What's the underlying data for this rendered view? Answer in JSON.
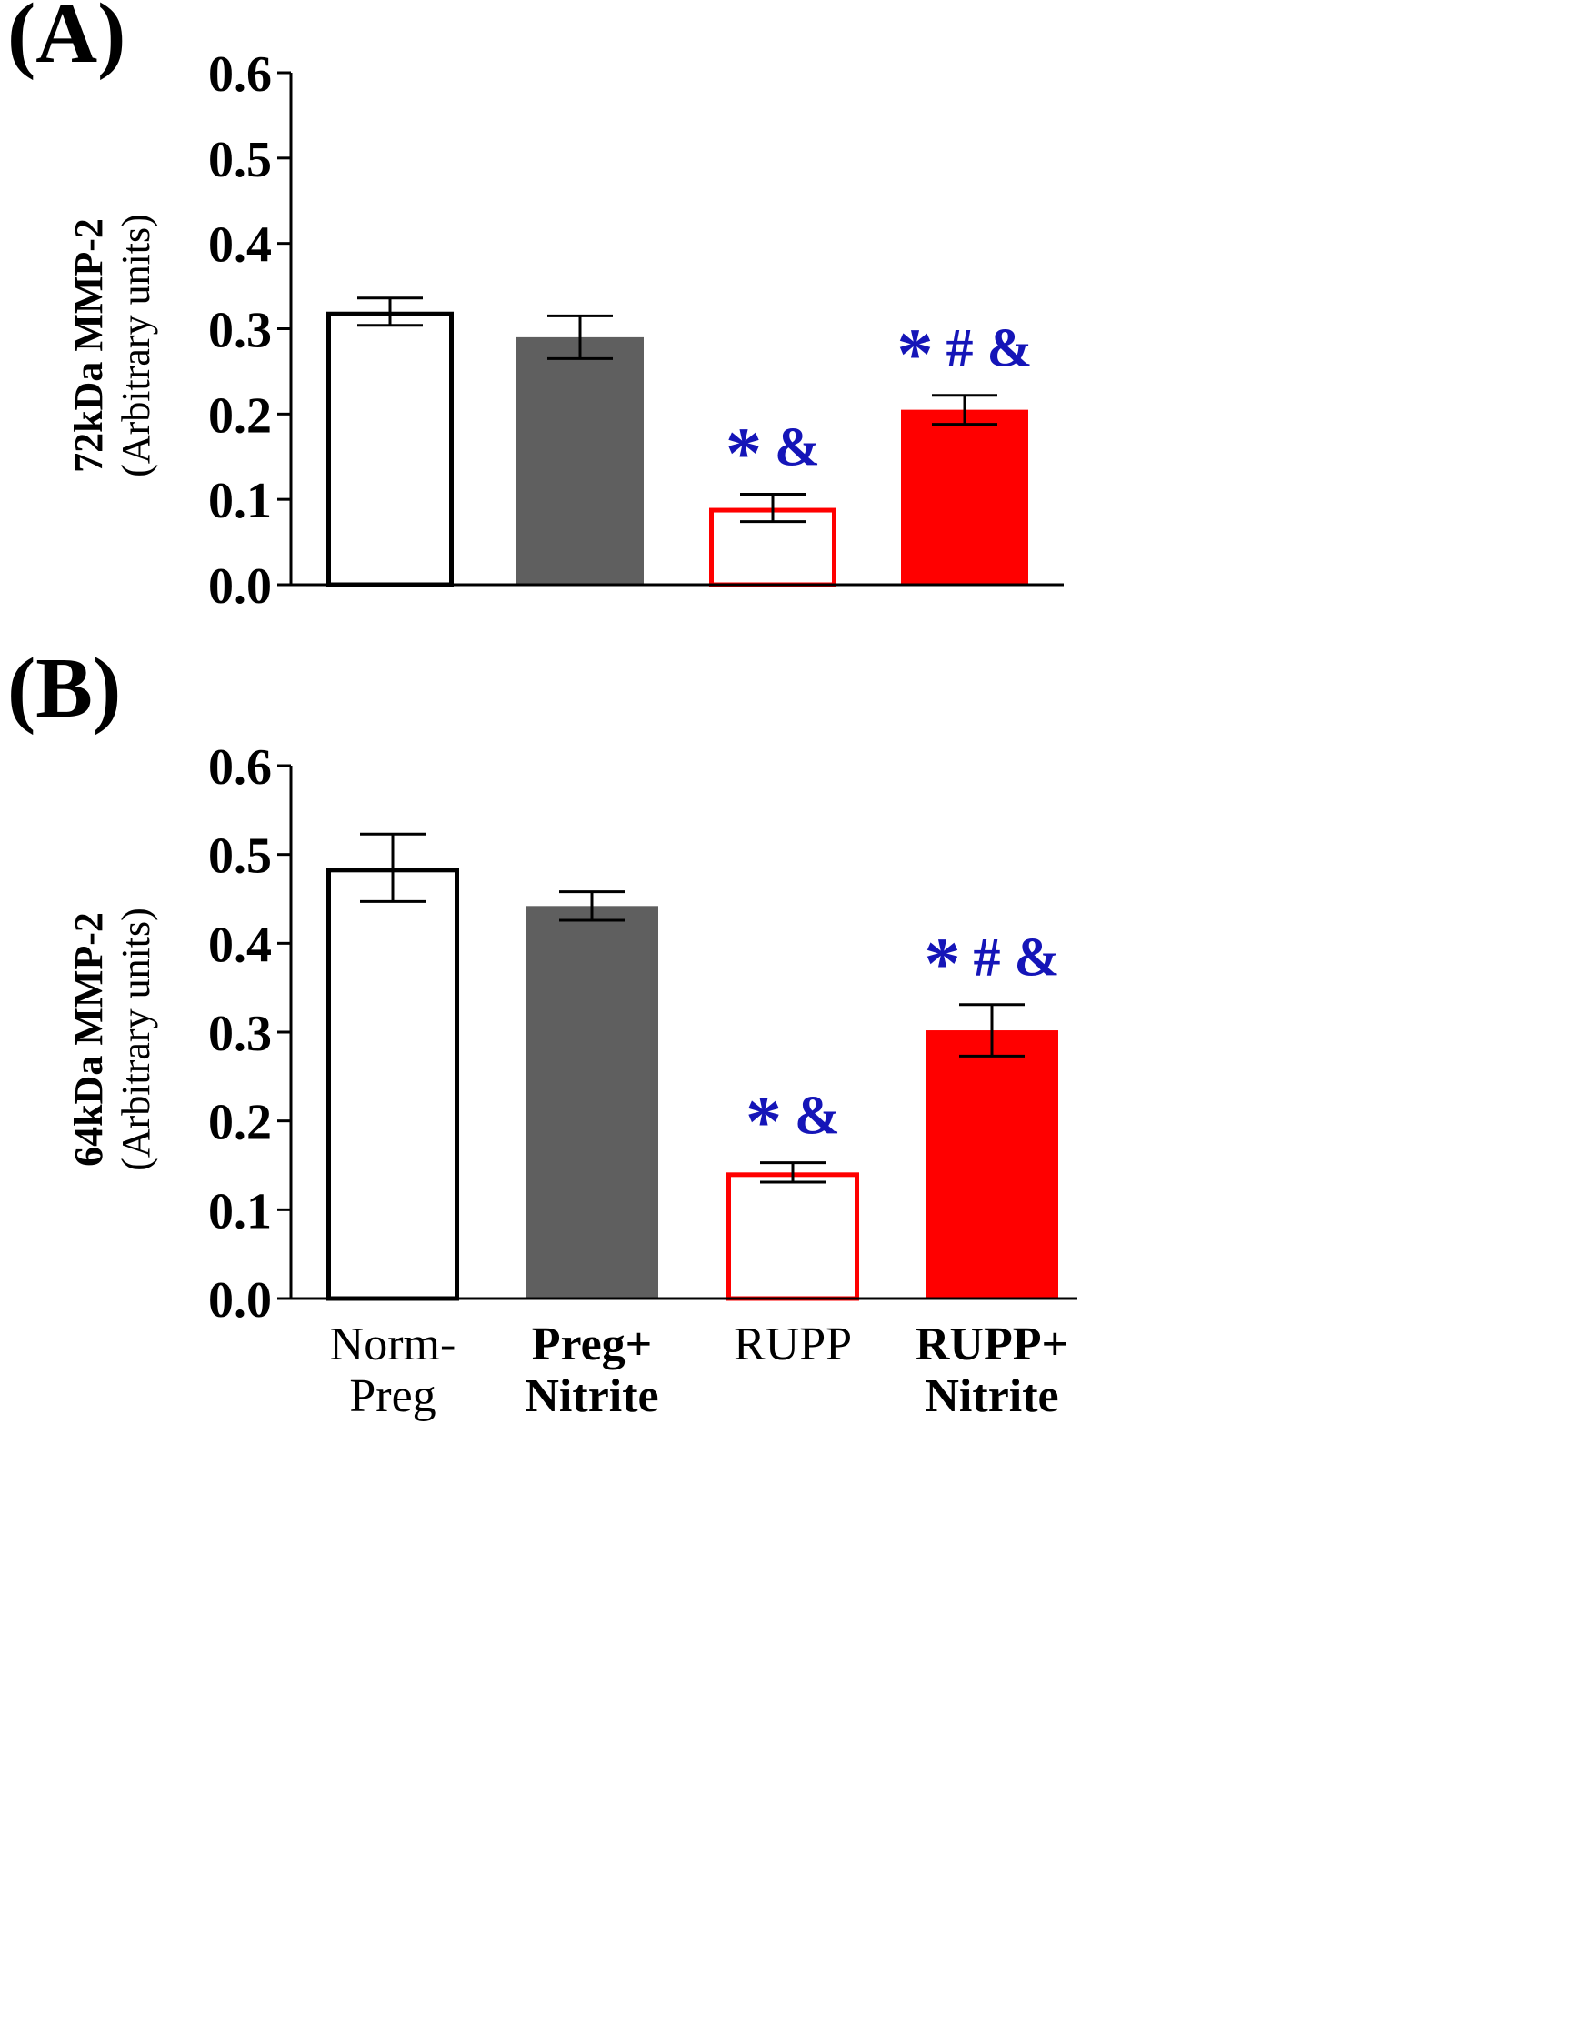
{
  "colors": {
    "axis": "#000000",
    "norm_preg_fill": "#ffffff",
    "norm_preg_stroke": "#000000",
    "preg_nitrite_fill": "#5f5f5f",
    "rupp_fill": "#ffffff",
    "rupp_stroke": "#ff0000",
    "rupp_nitrite_fill": "#ff0000",
    "annotation": "#1515b8"
  },
  "chart_data": [
    {
      "type": "bar",
      "panel_label": "(A)",
      "ylabel_main": "72kDa MMP-2",
      "ylabel_sub": "(Arbitrary units)",
      "ylim": [
        0,
        0.6
      ],
      "yticks": [
        "0.0",
        "0.1",
        "0.2",
        "0.3",
        "0.4",
        "0.5",
        "0.6"
      ],
      "categories": [
        "Norm-Preg",
        "Preg+ Nitrite",
        "RUPP",
        "RUPP+ Nitrite"
      ],
      "values": [
        0.32,
        0.29,
        0.09,
        0.205
      ],
      "errors": [
        0.016,
        0.025,
        0.016,
        0.017
      ],
      "annotations": [
        {
          "star": "",
          "symbols": ""
        },
        {
          "star": "",
          "symbols": ""
        },
        {
          "star": "*",
          "symbols": "&"
        },
        {
          "star": "*",
          "symbols": "# &"
        }
      ]
    },
    {
      "type": "bar",
      "panel_label": "(B)",
      "ylabel_main": "64kDa MMP-2",
      "ylabel_sub": "(Arbitrary units)",
      "ylim": [
        0,
        0.6
      ],
      "yticks": [
        "0.0",
        "0.1",
        "0.2",
        "0.3",
        "0.4",
        "0.5",
        "0.6"
      ],
      "categories": [
        "Norm-Preg",
        "Preg+ Nitrite",
        "RUPP",
        "RUPP+ Nitrite"
      ],
      "values": [
        0.485,
        0.442,
        0.142,
        0.302
      ],
      "errors": [
        0.038,
        0.016,
        0.011,
        0.029
      ],
      "annotations": [
        {
          "star": "",
          "symbols": ""
        },
        {
          "star": "",
          "symbols": ""
        },
        {
          "star": "*",
          "symbols": "&"
        },
        {
          "star": "*",
          "symbols": "# &"
        }
      ]
    }
  ],
  "x_axis_labels": [
    {
      "line1": "Norm-",
      "line2": "Preg",
      "bold": false
    },
    {
      "line1": "Preg+",
      "line2": "Nitrite",
      "bold": true
    },
    {
      "line1": "RUPP",
      "line2": "",
      "bold": false
    },
    {
      "line1": "RUPP+",
      "line2": "Nitrite",
      "bold": true
    }
  ]
}
